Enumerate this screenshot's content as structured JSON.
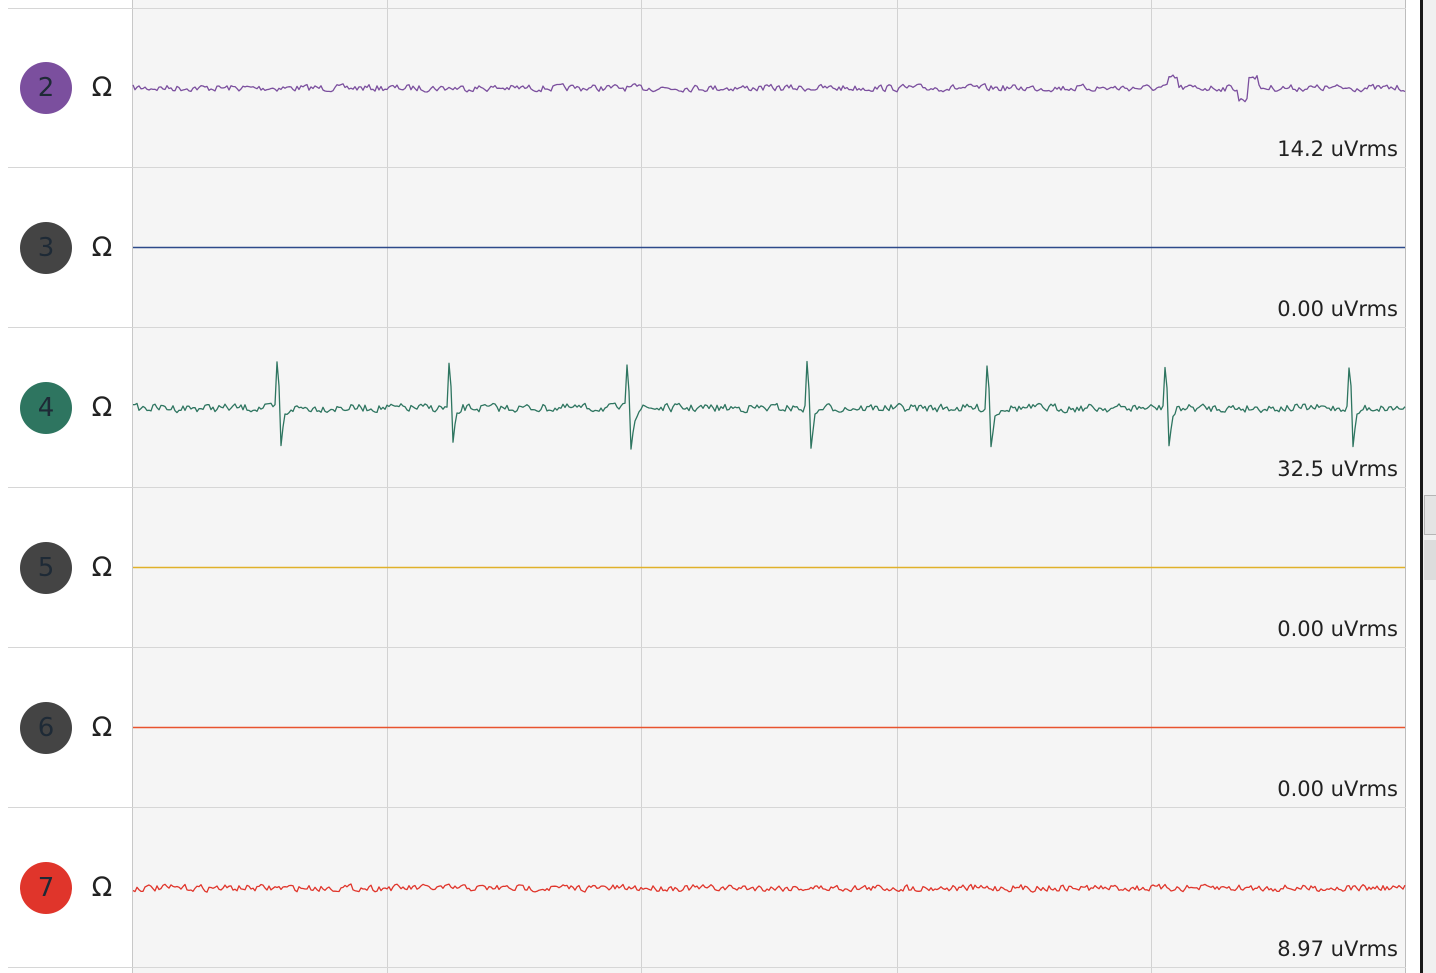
{
  "channels": [
    {
      "number": "2",
      "impedance_icon": "Ω",
      "rms": "14.2 uVrms",
      "badge_color": "#7b4f9e",
      "trace_color": "#7b4f9e",
      "signal": "noise"
    },
    {
      "number": "3",
      "impedance_icon": "Ω",
      "rms": "0.00 uVrms",
      "badge_color": "#444444",
      "trace_color": "#2d4a8a",
      "signal": "flat"
    },
    {
      "number": "4",
      "impedance_icon": "Ω",
      "rms": "32.5 uVrms",
      "badge_color": "#2e7560",
      "trace_color": "#2e7560",
      "signal": "ecg"
    },
    {
      "number": "5",
      "impedance_icon": "Ω",
      "rms": "0.00 uVrms",
      "badge_color": "#444444",
      "trace_color": "#e0b12a",
      "signal": "flat"
    },
    {
      "number": "6",
      "impedance_icon": "Ω",
      "rms": "0.00 uVrms",
      "badge_color": "#444444",
      "trace_color": "#e8542e",
      "signal": "flat"
    },
    {
      "number": "7",
      "impedance_icon": "Ω",
      "rms": "8.97 uVrms",
      "badge_color": "#e0352b",
      "trace_color": "#e0352b",
      "signal": "noise"
    }
  ]
}
